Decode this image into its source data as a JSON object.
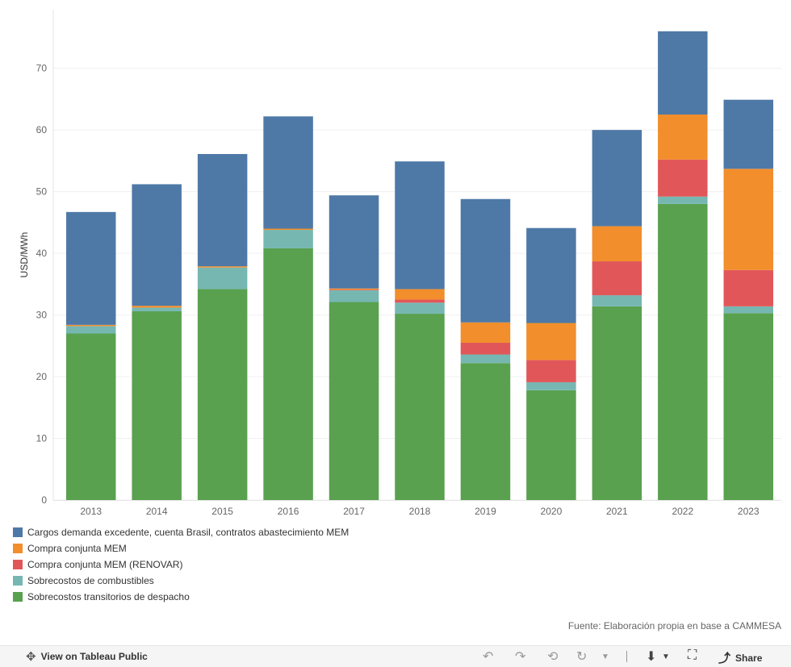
{
  "chart_data": {
    "type": "bar",
    "stacked": true,
    "categories": [
      "2013",
      "2014",
      "2015",
      "2016",
      "2017",
      "2018",
      "2019",
      "2020",
      "2021",
      "2022",
      "2023"
    ],
    "series": [
      {
        "name": "Sobrecostos transitorios de despacho",
        "color": "#59a14f",
        "values": [
          27.0,
          30.6,
          34.2,
          40.8,
          32.1,
          30.2,
          22.2,
          17.8,
          31.4,
          48.0,
          30.3
        ]
      },
      {
        "name": "Sobrecostos de combustibles",
        "color": "#76b7b2",
        "values": [
          1.2,
          0.6,
          3.5,
          3.0,
          1.9,
          1.8,
          1.4,
          1.3,
          1.8,
          1.2,
          1.1
        ]
      },
      {
        "name": "Compra conjunta MEM (RENOVAR)",
        "color": "#e15759",
        "values": [
          0,
          0,
          0,
          0,
          0.1,
          0.5,
          1.9,
          3.6,
          5.5,
          6.0,
          5.9
        ]
      },
      {
        "name": "Compra conjunta MEM",
        "color": "#f28e2b",
        "values": [
          0.2,
          0.3,
          0.2,
          0.2,
          0.2,
          1.7,
          3.3,
          6.0,
          5.7,
          7.3,
          16.4
        ]
      },
      {
        "name": "Cargos demanda excedente, cuenta Brasil, contratos abastecimiento MEM",
        "color": "#4e79a7",
        "values": [
          18.3,
          19.7,
          18.2,
          18.2,
          15.1,
          20.7,
          20.0,
          15.4,
          15.6,
          13.5,
          11.2
        ]
      }
    ],
    "title": "",
    "xlabel": "",
    "ylabel": "USD/MWh",
    "ylim": [
      0,
      79.5
    ],
    "yticks": [
      0,
      10,
      20,
      30,
      40,
      50,
      60,
      70
    ],
    "legend_order": [
      4,
      3,
      2,
      1,
      0
    ],
    "legend_position": "bottom-left"
  },
  "source_note": "Fuente: Elaboración propia en base a CAMMESA",
  "toolbar": {
    "view_label": "View on Tableau Public",
    "share_label": "Share",
    "view_icon": "tableau-icon",
    "undo_icon": "undo-icon",
    "redo_icon": "redo-icon",
    "revert_icon": "revert-icon",
    "refresh_icon": "refresh-icon",
    "download_icon": "download-icon",
    "fullscreen_icon": "fullscreen-icon",
    "share_icon": "share-icon"
  }
}
